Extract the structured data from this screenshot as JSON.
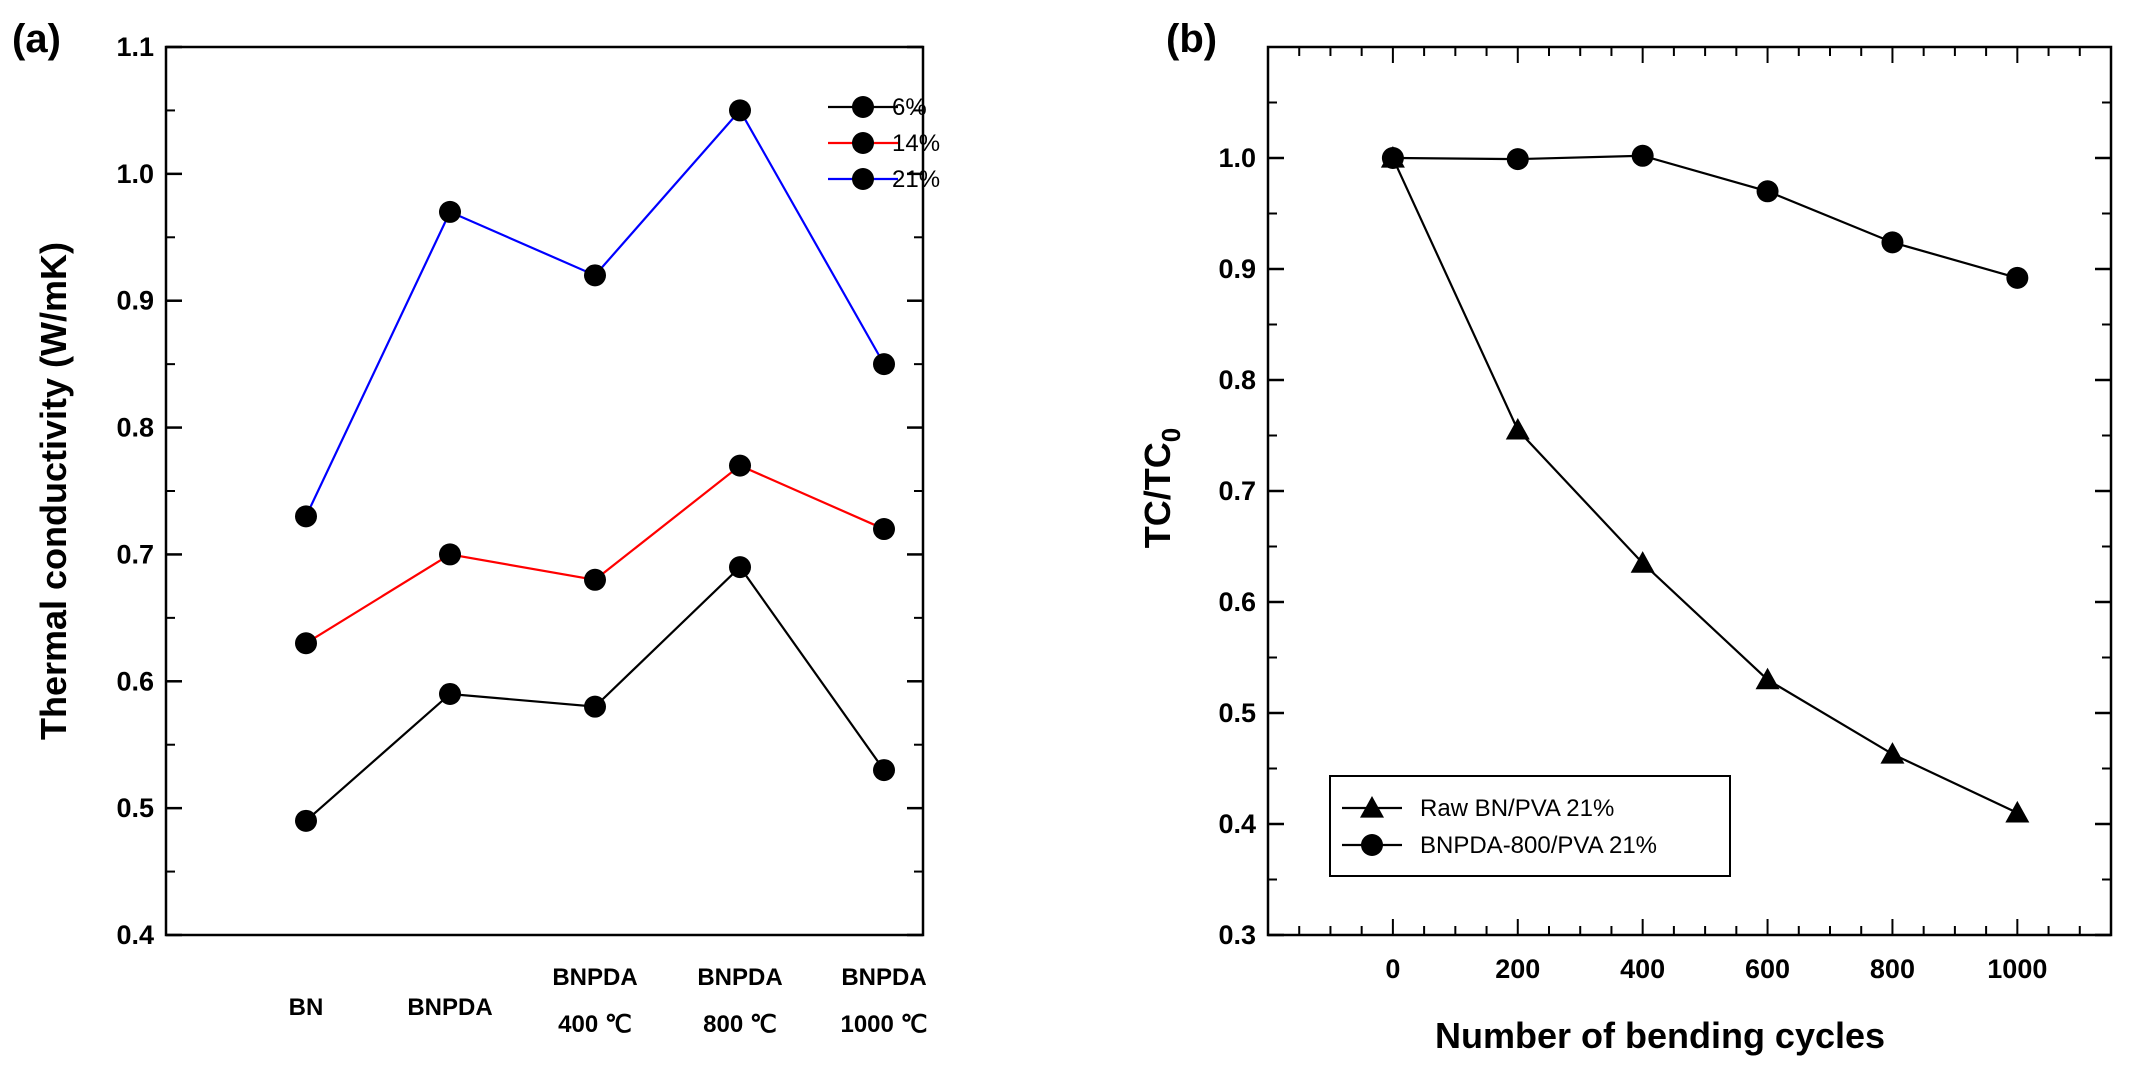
{
  "chart_data": [
    {
      "panel": "(a)",
      "type": "line",
      "title": "",
      "xlabel": "",
      "ylabel": "Thermal conductivity (W/mK)",
      "ylim": [
        0.4,
        1.1
      ],
      "yticks": [
        "0.4",
        "0.5",
        "0.6",
        "0.7",
        "0.8",
        "0.9",
        "1.0",
        "1.1"
      ],
      "categories": [
        {
          "line1": "BN",
          "line2": ""
        },
        {
          "line1": "BNPDA",
          "line2": ""
        },
        {
          "line1": "BNPDA",
          "line2": "400 ℃"
        },
        {
          "line1": "BNPDA",
          "line2": "800 ℃"
        },
        {
          "line1": "BNPDA",
          "line2": "1000 ℃"
        }
      ],
      "legend_position": "top-right",
      "series": [
        {
          "name": "6%",
          "color": "#000000",
          "values": [
            0.49,
            0.59,
            0.58,
            0.69,
            0.53
          ]
        },
        {
          "name": "14%",
          "color": "#ff0000",
          "values": [
            0.63,
            0.7,
            0.68,
            0.77,
            0.72
          ]
        },
        {
          "name": "21%",
          "color": "#0000ff",
          "values": [
            0.73,
            0.97,
            0.92,
            1.05,
            0.85
          ]
        }
      ]
    },
    {
      "panel": "(b)",
      "type": "line",
      "title": "",
      "xlabel": "Number of bending cycles",
      "ylabel_main": "TC/TC",
      "ylabel_sub": "0",
      "xlim": [
        -200,
        1150
      ],
      "ylim": [
        0.3,
        1.1
      ],
      "xticks": [
        "0",
        "200",
        "400",
        "600",
        "800",
        "1000"
      ],
      "yticks": [
        "0.3",
        "0.4",
        "0.5",
        "0.6",
        "0.7",
        "0.8",
        "0.9",
        "1.0"
      ],
      "legend_position": "bottom-left",
      "x": [
        0,
        200,
        400,
        600,
        800,
        1000
      ],
      "series": [
        {
          "name": "Raw BN/PVA 21%",
          "marker": "triangle",
          "color": "#000000",
          "values": [
            1.0,
            0.755,
            0.635,
            0.53,
            0.463,
            0.41
          ]
        },
        {
          "name": "BNPDA-800/PVA 21%",
          "marker": "circle",
          "color": "#000000",
          "values": [
            1.0,
            0.999,
            1.002,
            0.97,
            0.924,
            0.892
          ]
        }
      ]
    }
  ]
}
